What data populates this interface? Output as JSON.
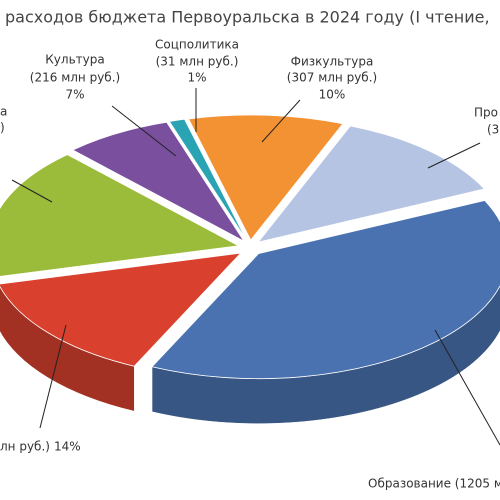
{
  "chart_data": {
    "type": "pie",
    "title": "расходов бюджета Первоуральска в 2024 году (I чтение,",
    "categories": [
      "Соцполитика",
      "Физкультура",
      "Про",
      "Образование (1205 м",
      null,
      "а",
      "Культура"
    ],
    "details": [
      "(31 млн руб.)",
      "(307 млн руб.)",
      "(3",
      null,
      "лн руб.)",
      ")",
      "(216 млн руб.)"
    ],
    "values": [
      1,
      10,
      12,
      39,
      14,
      17,
      7
    ],
    "value_labels": [
      "1%",
      "10%",
      null,
      null,
      "14%",
      null,
      "7%"
    ],
    "colors": [
      "#2aa3b3",
      "#f39233",
      "#b5c4e2",
      "#4a72b0",
      "#d9412e",
      "#9bbb3a",
      "#7a4f9d"
    ]
  }
}
